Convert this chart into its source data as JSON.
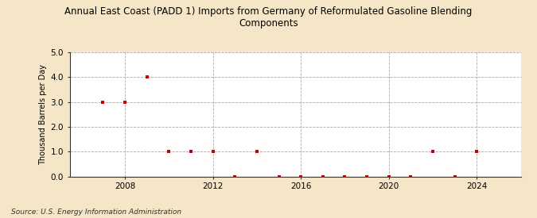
{
  "title": "Annual East Coast (PADD 1) Imports from Germany of Reformulated Gasoline Blending\nComponents",
  "ylabel": "Thousand Barrels per Day",
  "source": "Source: U.S. Energy Information Administration",
  "background_color": "#f5e6c8",
  "plot_bg_color": "#ffffff",
  "xlim": [
    2005.5,
    2026.0
  ],
  "ylim": [
    0.0,
    5.0
  ],
  "yticks": [
    0.0,
    1.0,
    2.0,
    3.0,
    4.0,
    5.0
  ],
  "xticks": [
    2008,
    2012,
    2016,
    2020,
    2024
  ],
  "marker_color": "#cc0000",
  "marker": "s",
  "markersize": 3.5,
  "data": {
    "years": [
      2007,
      2008,
      2009,
      2010,
      2011,
      2012,
      2013,
      2014,
      2015,
      2016,
      2017,
      2018,
      2019,
      2020,
      2021,
      2022,
      2023,
      2024
    ],
    "values": [
      3.0,
      3.0,
      4.0,
      1.0,
      1.0,
      1.0,
      0.0,
      1.0,
      0.0,
      0.0,
      0.0,
      0.0,
      0.0,
      0.0,
      0.0,
      1.0,
      0.0,
      1.0
    ]
  }
}
